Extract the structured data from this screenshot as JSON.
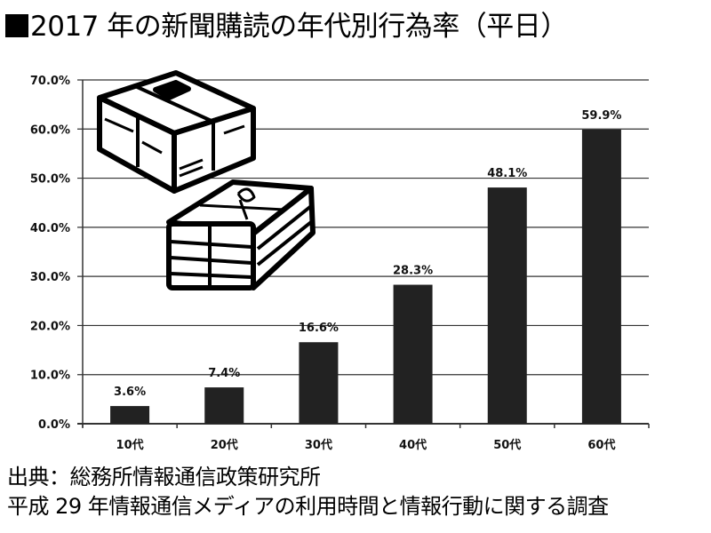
{
  "title": "2017 年の新聞購読の年代別行為率（平日）",
  "source": {
    "line1": "出典：総務所情報通信政策研究所",
    "line2": "平成 29 年情報通信メディアの利用時間と情報行動に関する調査"
  },
  "chart_data": {
    "type": "bar",
    "title": "2017 年の新聞購読の年代別行為率（平日）",
    "categories": [
      "10代",
      "20代",
      "30代",
      "40代",
      "50代",
      "60代"
    ],
    "values": [
      3.6,
      7.4,
      16.6,
      28.3,
      48.1,
      59.9
    ],
    "data_labels": [
      "3.6%",
      "7.4%",
      "16.6%",
      "28.3%",
      "48.1%",
      "59.9%"
    ],
    "yticks": [
      "0.0%",
      "10.0%",
      "20.0%",
      "30.0%",
      "40.0%",
      "50.0%",
      "60.0%",
      "70.0%"
    ],
    "ylim": [
      0,
      70
    ],
    "xlabel": "",
    "ylabel": "",
    "grid": true,
    "bar_color": "#222222"
  }
}
